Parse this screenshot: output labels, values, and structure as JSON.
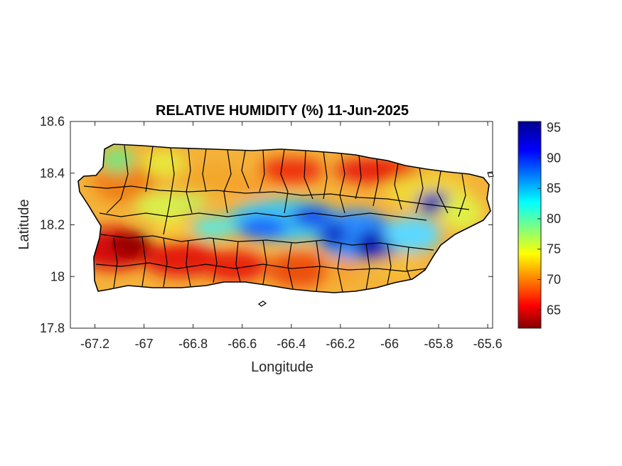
{
  "chart_data": {
    "type": "heatmap",
    "title": "RELATIVE HUMIDITY (%) 11-Jun-2025",
    "xlabel": "Longitude",
    "ylabel": "Latitude",
    "xlim": [
      -67.3,
      -65.58
    ],
    "ylim": [
      17.8,
      18.6
    ],
    "xticks": [
      "-67.2",
      "-67",
      "-66.8",
      "-66.6",
      "-66.4",
      "-66.2",
      "-66",
      "-65.8",
      "-65.6"
    ],
    "yticks": [
      "18.6",
      "18.4",
      "18.2",
      "18"
    ],
    "ytick_bottom": "17.8",
    "colorbar": {
      "range": [
        62,
        96
      ],
      "ticks": [
        "95",
        "90",
        "85",
        "80",
        "75",
        "70",
        "65"
      ],
      "colormap": "jet"
    },
    "grid": false,
    "field_samples": [
      {
        "lon": -67.1,
        "lat": 18.12,
        "rh": 63
      },
      {
        "lon": -66.95,
        "lat": 18.08,
        "rh": 65
      },
      {
        "lon": -66.8,
        "lat": 18.05,
        "rh": 66
      },
      {
        "lon": -66.6,
        "lat": 18.03,
        "rh": 67
      },
      {
        "lon": -66.45,
        "lat": 18.42,
        "rh": 68
      },
      {
        "lon": -66.15,
        "lat": 18.42,
        "rh": 67
      },
      {
        "lon": -66.0,
        "lat": 18.4,
        "rh": 69
      },
      {
        "lon": -65.78,
        "lat": 18.29,
        "rh": 94
      },
      {
        "lon": -66.05,
        "lat": 18.12,
        "rh": 94
      },
      {
        "lon": -66.3,
        "lat": 18.2,
        "rh": 90
      },
      {
        "lon": -66.55,
        "lat": 18.18,
        "rh": 88
      },
      {
        "lon": -67.2,
        "lat": 18.3,
        "rh": 77
      },
      {
        "lon": -67.05,
        "lat": 18.45,
        "rh": 79
      },
      {
        "lon": -66.75,
        "lat": 18.35,
        "rh": 76
      },
      {
        "lon": -65.7,
        "lat": 18.2,
        "rh": 76
      }
    ]
  }
}
